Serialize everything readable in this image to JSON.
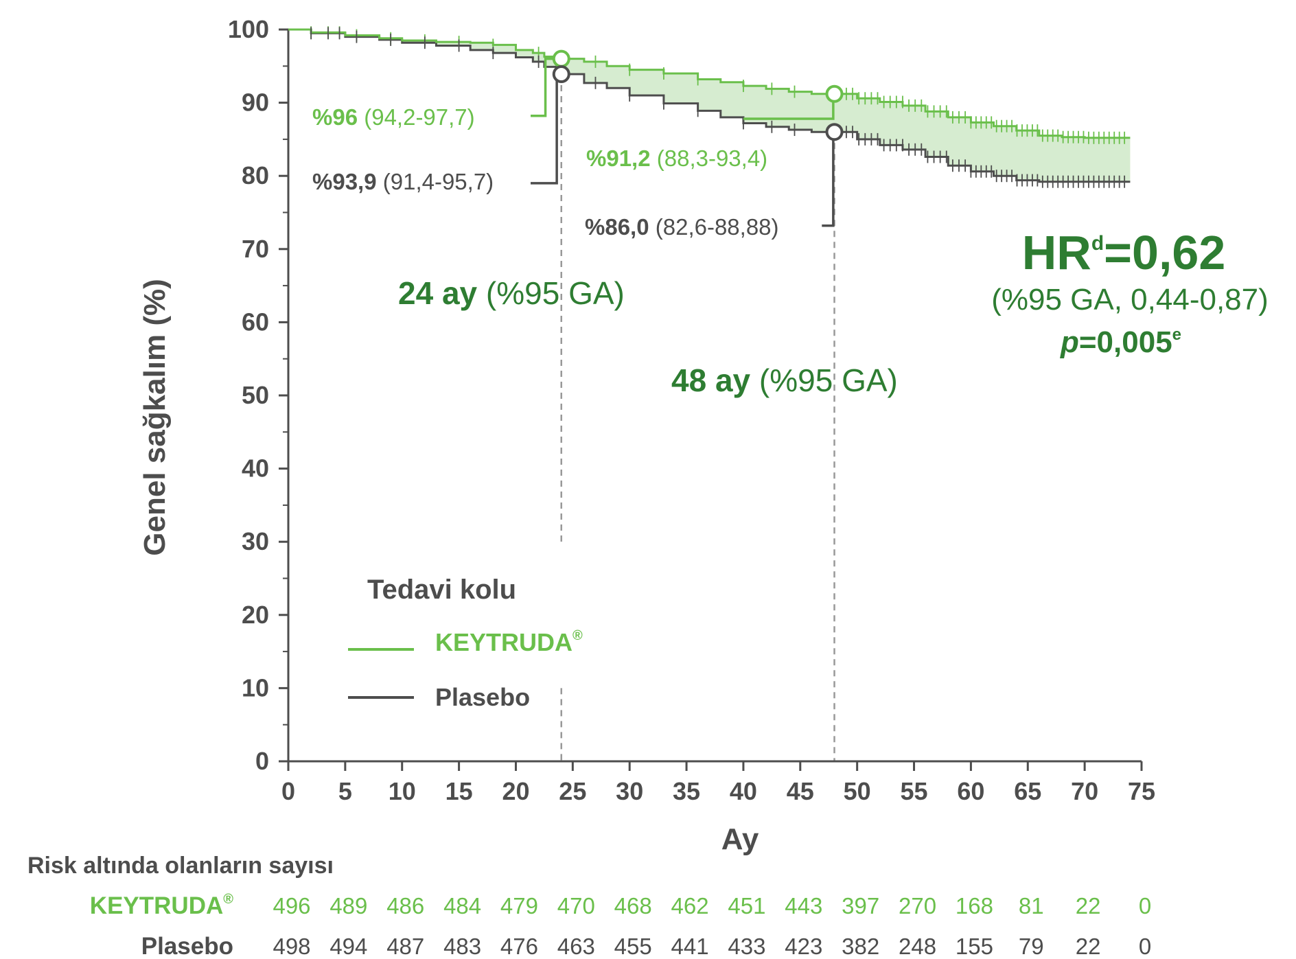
{
  "colors": {
    "keytruda": "#6abf4b",
    "placebo": "#4d4d4d",
    "dark_green": "#2e7d32",
    "band": "#d6ecd0",
    "dash": "#999999"
  },
  "chart_data": {
    "type": "line",
    "xlabel": "Ay",
    "ylabel": "Genel sağkalım (%)",
    "xlim": [
      0,
      75
    ],
    "ylim": [
      0,
      100
    ],
    "x_ticks": [
      0,
      5,
      10,
      15,
      20,
      25,
      30,
      35,
      40,
      45,
      50,
      55,
      60,
      65,
      70,
      75
    ],
    "y_ticks": [
      0,
      10,
      20,
      30,
      40,
      50,
      60,
      70,
      80,
      90,
      100
    ],
    "legend": {
      "title": "Tedavi kolu",
      "position": "lower-left",
      "items": [
        "KEYTRUDA®",
        "Plasebo"
      ]
    },
    "series": [
      {
        "name": "KEYTRUDA®",
        "color": "#6abf4b",
        "x": [
          0,
          2,
          5,
          8,
          10,
          13,
          16,
          18,
          20,
          21.5,
          22.5,
          24,
          26,
          28,
          30,
          33,
          36,
          38,
          40,
          42,
          44,
          46,
          48,
          50,
          52,
          54,
          56,
          58,
          60,
          62,
          64,
          66,
          68,
          70,
          72,
          74
        ],
        "y": [
          100,
          99.6,
          99.2,
          98.8,
          98.5,
          98.3,
          98.2,
          97.9,
          97.2,
          96.8,
          96.3,
          96.0,
          95.6,
          95.0,
          94.5,
          94.0,
          93.2,
          92.8,
          92.3,
          91.9,
          91.5,
          91.2,
          91.2,
          90.6,
          90.1,
          89.6,
          88.8,
          88.0,
          87.3,
          86.8,
          86.2,
          85.5,
          85.3,
          85.2,
          85.2,
          85.2
        ]
      },
      {
        "name": "Plasebo",
        "color": "#4d4d4d",
        "x": [
          0,
          2,
          5,
          8,
          10,
          13,
          16,
          18,
          20,
          21.5,
          22.5,
          24,
          26,
          28,
          30,
          33,
          36,
          38,
          40,
          42,
          44,
          46,
          48,
          50,
          52,
          54,
          56,
          58,
          60,
          62,
          64,
          66,
          68,
          70,
          72,
          74
        ],
        "y": [
          100,
          99.5,
          99.0,
          98.6,
          98.2,
          97.8,
          97.2,
          96.8,
          96.2,
          95.6,
          94.9,
          93.9,
          92.7,
          92.0,
          91.0,
          89.9,
          88.9,
          88.0,
          87.2,
          86.7,
          86.3,
          86.0,
          86.0,
          85.0,
          84.2,
          83.6,
          82.6,
          81.4,
          80.6,
          80.0,
          79.4,
          79.2,
          79.2,
          79.2,
          79.2,
          79.2
        ]
      }
    ],
    "markers": [
      {
        "series": "KEYTRUDA®",
        "x": 24,
        "y": 96.0
      },
      {
        "series": "Plasebo",
        "x": 24,
        "y": 93.9
      },
      {
        "series": "KEYTRUDA®",
        "x": 48,
        "y": 91.2
      },
      {
        "series": "Plasebo",
        "x": 48,
        "y": 86.0
      }
    ],
    "vlines": [
      24,
      48
    ]
  },
  "annotations": {
    "k24_val": "%96",
    "k24_ci": " (94,2-97,7)",
    "p24_val": "%93,9",
    "p24_ci": " (91,4-95,7)",
    "k48_val": "%91,2",
    "k48_ci": " (88,3-93,4)",
    "p48_val": "%86,0",
    "p48_ci": " (82,6-88,88)",
    "m24_bold": "24 ay",
    "m24_rest": " (%95 GA)",
    "m48_bold": "48 ay",
    "m48_rest": " (%95 GA)",
    "hr_main": "HR",
    "hr_sup": "d",
    "hr_val": "=0,62",
    "hr_ci": "(%95 GA, 0,44-0,87)",
    "p_italic": "p",
    "p_val": "=0,005",
    "p_sup": "e"
  },
  "risk_table": {
    "title": "Risk altında olanların sayısı",
    "rows": [
      {
        "label": "KEYTRUDA",
        "label_sup": "®",
        "values": [
          "496",
          "489",
          "486",
          "484",
          "479",
          "470",
          "468",
          "462",
          "451",
          "443",
          "397",
          "270",
          "168",
          "81",
          "22",
          "0"
        ]
      },
      {
        "label": "Plasebo",
        "label_sup": "",
        "values": [
          "498",
          "494",
          "487",
          "483",
          "476",
          "463",
          "455",
          "441",
          "433",
          "423",
          "382",
          "248",
          "155",
          "79",
          "22",
          "0"
        ]
      }
    ]
  }
}
